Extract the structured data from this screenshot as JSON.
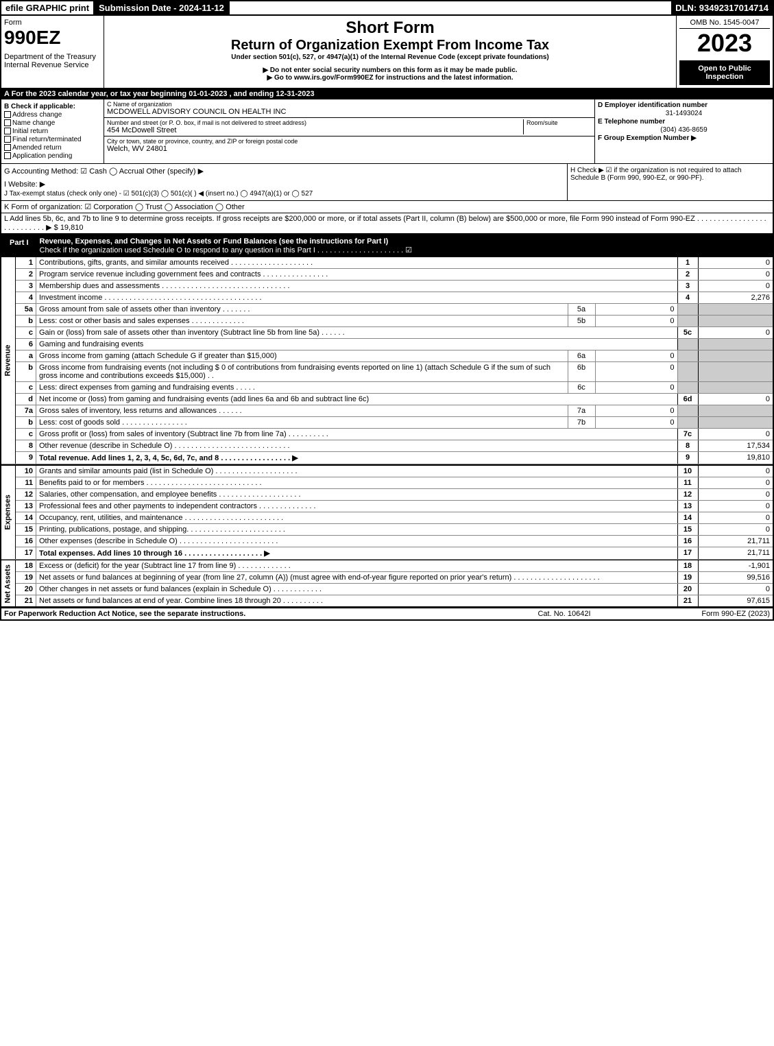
{
  "topbar": {
    "efile": "efile GRAPHIC print",
    "subdate": "Submission Date - 2024-11-12",
    "dln": "DLN: 93492317014714"
  },
  "header": {
    "form_label": "Form",
    "form_num": "990EZ",
    "dept": "Department of the Treasury\nInternal Revenue Service",
    "short_form": "Short Form",
    "title": "Return of Organization Exempt From Income Tax",
    "under": "Under section 501(c), 527, or 4947(a)(1) of the Internal Revenue Code (except private foundations)",
    "ssn": "▶ Do not enter social security numbers on this form as it may be made public.",
    "goto": "▶ Go to www.irs.gov/Form990EZ for instructions and the latest information.",
    "omb": "OMB No. 1545-0047",
    "year": "2023",
    "open": "Open to Public Inspection"
  },
  "section_a": "A  For the 2023 calendar year, or tax year beginning 01-01-2023 , and ending 12-31-2023",
  "section_b": {
    "label": "B  Check if applicable:",
    "items": [
      "Address change",
      "Name change",
      "Initial return",
      "Final return/terminated",
      "Amended return",
      "Application pending"
    ]
  },
  "section_c": {
    "label": "C Name of organization",
    "name": "MCDOWELL ADVISORY COUNCIL ON HEALTH INC",
    "street_label": "Number and street (or P. O. box, if mail is not delivered to street address)",
    "street": "454 McDowell Street",
    "room_label": "Room/suite",
    "city_label": "City or town, state or province, country, and ZIP or foreign postal code",
    "city": "Welch, WV  24801"
  },
  "right": {
    "d_label": "D Employer identification number",
    "ein": "31-1493024",
    "e_label": "E Telephone number",
    "phone": "(304) 436-8659",
    "f_label": "F Group Exemption Number  ▶"
  },
  "g": "G Accounting Method:  ☑ Cash  ◯ Accrual  Other (specify) ▶",
  "h": "H  Check ▶ ☑ if the organization is not required to attach Schedule B (Form 990, 990-EZ, or 990-PF).",
  "i": "I Website: ▶",
  "j": "J Tax-exempt status (check only one) - ☑ 501(c)(3) ◯ 501(c)(  ) ◀ (insert no.) ◯ 4947(a)(1) or ◯ 527",
  "k": "K Form of organization:  ☑ Corporation  ◯ Trust  ◯ Association  ◯ Other",
  "l": "L Add lines 5b, 6c, and 7b to line 9 to determine gross receipts. If gross receipts are $200,000 or more, or if total assets (Part II, column (B) below) are $500,000 or more, file Form 990 instead of Form 990-EZ . . . . . . . . . . . . . . . . . . . . . . . . . . . ▶ $ 19,810",
  "part1": {
    "label": "Part I",
    "title": "Revenue, Expenses, and Changes in Net Assets or Fund Balances (see the instructions for Part I)",
    "check": "Check if the organization used Schedule O to respond to any question in this Part I . . . . . . . . . . . . . . . . . . . . . ☑"
  },
  "rows": [
    {
      "n": "1",
      "desc": "Contributions, gifts, grants, and similar amounts received . . . . . . . . . . . . . . . . . . . .",
      "ln": "1",
      "val": "0"
    },
    {
      "n": "2",
      "desc": "Program service revenue including government fees and contracts . . . . . . . . . . . . . . . .",
      "ln": "2",
      "val": "0"
    },
    {
      "n": "3",
      "desc": "Membership dues and assessments . . . . . . . . . . . . . . . . . . . . . . . . . . . . . . .",
      "ln": "3",
      "val": "0"
    },
    {
      "n": "4",
      "desc": "Investment income . . . . . . . . . . . . . . . . . . . . . . . . . . . . . . . . . . . . . .",
      "ln": "4",
      "val": "2,276"
    },
    {
      "n": "5a",
      "desc": "Gross amount from sale of assets other than inventory . . . . . . .",
      "sub": "5a",
      "subval": "0"
    },
    {
      "n": "b",
      "desc": "Less: cost or other basis and sales expenses . . . . . . . . . . . . .",
      "sub": "5b",
      "subval": "0"
    },
    {
      "n": "c",
      "desc": "Gain or (loss) from sale of assets other than inventory (Subtract line 5b from line 5a) . . . . . .",
      "ln": "5c",
      "val": "0"
    },
    {
      "n": "6",
      "desc": "Gaming and fundraising events"
    },
    {
      "n": "a",
      "desc": "Gross income from gaming (attach Schedule G if greater than $15,000)",
      "sub": "6a",
      "subval": "0"
    },
    {
      "n": "b",
      "desc": "Gross income from fundraising events (not including $  0            of contributions from fundraising events reported on line 1) (attach Schedule G if the sum of such gross income and contributions exceeds $15,000)    .  .",
      "sub": "6b",
      "subval": "0"
    },
    {
      "n": "c",
      "desc": "Less: direct expenses from gaming and fundraising events  . . . . .",
      "sub": "6c",
      "subval": "0"
    },
    {
      "n": "d",
      "desc": "Net income or (loss) from gaming and fundraising events (add lines 6a and 6b and subtract line 6c)",
      "ln": "6d",
      "val": "0"
    },
    {
      "n": "7a",
      "desc": "Gross sales of inventory, less returns and allowances . . . . . .",
      "sub": "7a",
      "subval": "0"
    },
    {
      "n": "b",
      "desc": "Less: cost of goods sold       . . . . . . . . . . . . . . . .",
      "sub": "7b",
      "subval": "0"
    },
    {
      "n": "c",
      "desc": "Gross profit or (loss) from sales of inventory (Subtract line 7b from line 7a) . . . . . . . . . .",
      "ln": "7c",
      "val": "0"
    },
    {
      "n": "8",
      "desc": "Other revenue (describe in Schedule O) . . . . . . . . . . . . . . . . . . . . . . . . . . . .",
      "ln": "8",
      "val": "17,534"
    },
    {
      "n": "9",
      "desc": "Total revenue. Add lines 1, 2, 3, 4, 5c, 6d, 7c, and 8  . . . . . . . . . . . . . . . . . ▶",
      "ln": "9",
      "val": "19,810",
      "bold": true
    }
  ],
  "expense_rows": [
    {
      "n": "10",
      "desc": "Grants and similar amounts paid (list in Schedule O) . . . . . . . . . . . . . . . . . . . .",
      "ln": "10",
      "val": "0"
    },
    {
      "n": "11",
      "desc": "Benefits paid to or for members    . . . . . . . . . . . . . . . . . . . . . . . . . . . .",
      "ln": "11",
      "val": "0"
    },
    {
      "n": "12",
      "desc": "Salaries, other compensation, and employee benefits . . . . . . . . . . . . . . . . . . . .",
      "ln": "12",
      "val": "0"
    },
    {
      "n": "13",
      "desc": "Professional fees and other payments to independent contractors . . . . . . . . . . . . . .",
      "ln": "13",
      "val": "0"
    },
    {
      "n": "14",
      "desc": "Occupancy, rent, utilities, and maintenance . . . . . . . . . . . . . . . . . . . . . . . .",
      "ln": "14",
      "val": "0"
    },
    {
      "n": "15",
      "desc": "Printing, publications, postage, and shipping. . . . . . . . . . . . . . . . . . . . . . . .",
      "ln": "15",
      "val": "0"
    },
    {
      "n": "16",
      "desc": "Other expenses (describe in Schedule O)    . . . . . . . . . . . . . . . . . . . . . . . .",
      "ln": "16",
      "val": "21,711"
    },
    {
      "n": "17",
      "desc": "Total expenses. Add lines 10 through 16    . . . . . . . . . . . . . . . . . . . ▶",
      "ln": "17",
      "val": "21,711",
      "bold": true
    }
  ],
  "netasset_rows": [
    {
      "n": "18",
      "desc": "Excess or (deficit) for the year (Subtract line 17 from line 9)       . . . . . . . . . . . . .",
      "ln": "18",
      "val": "-1,901"
    },
    {
      "n": "19",
      "desc": "Net assets or fund balances at beginning of year (from line 27, column (A)) (must agree with end-of-year figure reported on prior year's return) . . . . . . . . . . . . . . . . . . . . .",
      "ln": "19",
      "val": "99,516"
    },
    {
      "n": "20",
      "desc": "Other changes in net assets or fund balances (explain in Schedule O) . . . . . . . . . . . .",
      "ln": "20",
      "val": "0"
    },
    {
      "n": "21",
      "desc": "Net assets or fund balances at end of year. Combine lines 18 through 20 . . . . . . . . . .",
      "ln": "21",
      "val": "97,615"
    }
  ],
  "vert_labels": {
    "rev": "Revenue",
    "exp": "Expenses",
    "net": "Net Assets"
  },
  "footer": {
    "left": "For Paperwork Reduction Act Notice, see the separate instructions.",
    "mid": "Cat. No. 10642I",
    "right": "Form 990-EZ (2023)"
  }
}
